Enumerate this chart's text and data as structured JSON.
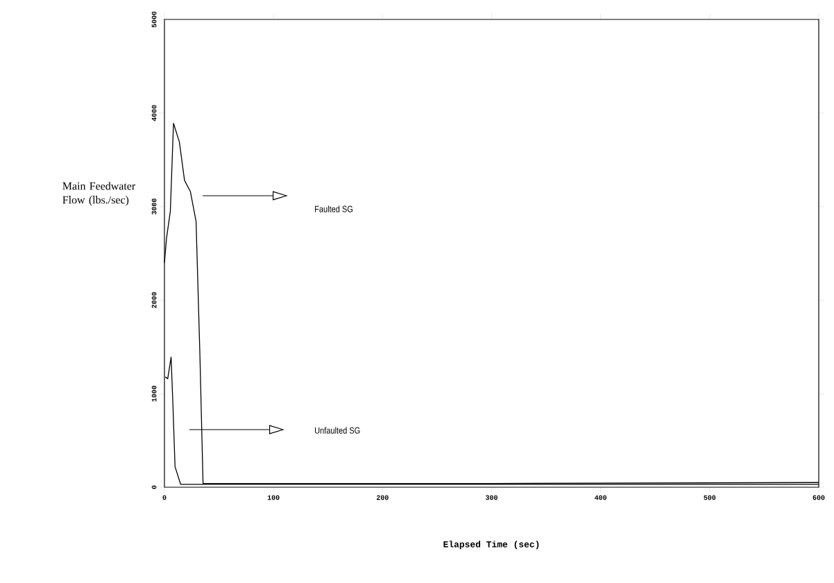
{
  "chart_data": {
    "type": "line",
    "xlabel": "Elapsed Time (sec)",
    "ylabel": "Main Feedwater Flow (lbs./sec)",
    "series": [
      {
        "color": "#000000",
        "x": [
          0,
          1.9,
          5.4,
          8.3,
          13.7,
          18.4,
          23.8,
          29,
          32.5,
          35.4,
          100,
          300,
          600
        ],
        "values": [
          2400,
          2660,
          2950,
          3890,
          3690,
          3280,
          3160,
          2840,
          1420,
          40,
          40,
          40,
          50
        ]
      },
      {
        "color": "#000000",
        "x": [
          0.7,
          3,
          6.1,
          7.8,
          9.7,
          14.9,
          100,
          300,
          600
        ],
        "values": [
          1180,
          1160,
          1390,
          870,
          220,
          30,
          30,
          30,
          30
        ]
      }
    ],
    "annotations": [
      "Faulted SG",
      "Unfaulted SG"
    ],
    "xlim": [
      0,
      600
    ],
    "ylim": [
      0,
      5000
    ],
    "xticks": [
      0,
      100,
      200,
      300,
      400,
      500,
      600
    ],
    "yticks": [
      0,
      1000,
      2000,
      3000,
      4000,
      5000
    ],
    "grid": false,
    "marker": "none",
    "line_style": "solid"
  }
}
